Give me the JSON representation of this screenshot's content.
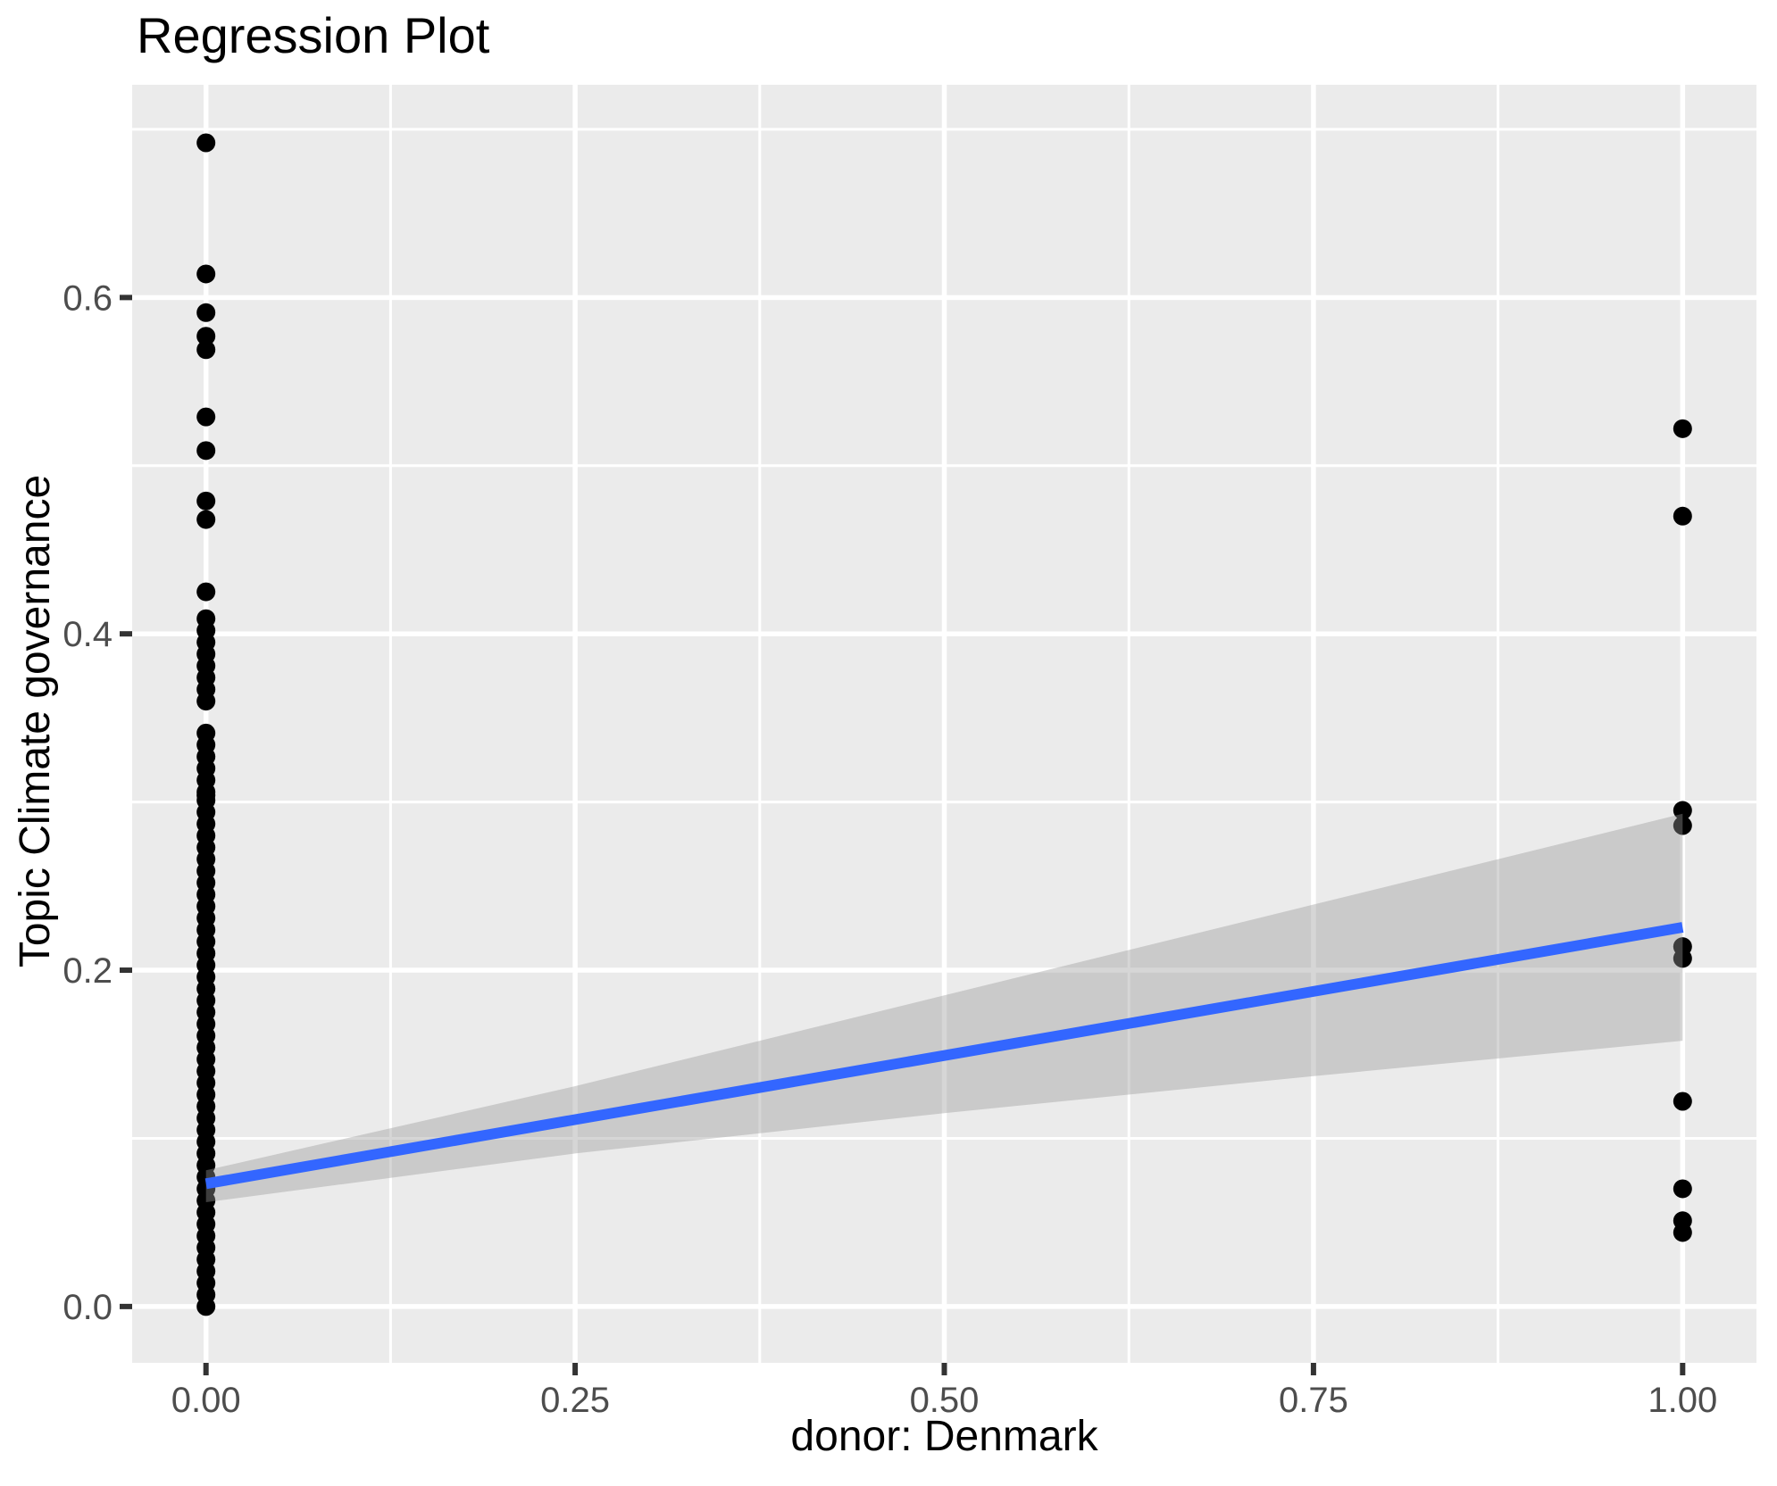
{
  "title": "Regression Plot",
  "colors": {
    "panel_background": "#EBEBEB",
    "grid": "#FFFFFF",
    "point": "#000000",
    "regression_line": "#3366FF",
    "confidence_band_fill": "rgba(153,153,153,0.4)",
    "tick_label": "#4D4D4D",
    "tick_mark": "#333333",
    "text": "#000000"
  },
  "chart_data": {
    "type": "scatter",
    "title": "Regression Plot",
    "xlabel": "donor: Denmark",
    "ylabel": "Topic Climate governance",
    "grid": true,
    "legend": false,
    "x_axis": {
      "range": [
        -0.05,
        1.05
      ],
      "ticks": [
        0,
        0.25,
        0.5,
        0.75,
        1.0
      ],
      "tick_labels": [
        "0.00",
        "0.25",
        "0.50",
        "0.75",
        "1.00"
      ],
      "minor_ticks": [
        0.125,
        0.375,
        0.625,
        0.875
      ]
    },
    "y_axis": {
      "range": [
        -0.0335,
        0.7265
      ],
      "ticks": [
        0,
        0.2,
        0.4,
        0.6
      ],
      "tick_labels": [
        "0.0",
        "0.2",
        "0.4",
        "0.6"
      ],
      "minor_ticks": [
        0.1,
        0.3,
        0.5,
        0.7
      ]
    },
    "points": {
      "note": "binary predictor: dense overplotted column at x=0, sparse points at x=1",
      "x0_isolated_y": [
        0.692,
        0.614,
        0.591,
        0.577,
        0.569,
        0.529,
        0.509,
        0.479,
        0.468,
        0.425
      ],
      "x0_dense_segments": [
        {
          "from": 0.36,
          "to": 0.409,
          "step": 0.007
        },
        {
          "from": 0.306,
          "to": 0.341,
          "step": 0.007
        },
        {
          "from": 0.0,
          "to": 0.304,
          "step": 0.007
        }
      ],
      "x1_y": [
        0.522,
        0.47,
        0.295,
        0.286,
        0.214,
        0.207,
        0.122,
        0.07,
        0.051,
        0.044
      ],
      "point_radius_px": 10.5
    },
    "regression_line": {
      "x": [
        0,
        1
      ],
      "y": [
        0.073,
        0.2255
      ]
    },
    "confidence_band": {
      "x": [
        0,
        0.25,
        0.5,
        0.75,
        1.0
      ],
      "upper": [
        0.081,
        0.131,
        0.185,
        0.239,
        0.293
      ],
      "lower": [
        0.062,
        0.091,
        0.115,
        0.137,
        0.158
      ]
    }
  }
}
